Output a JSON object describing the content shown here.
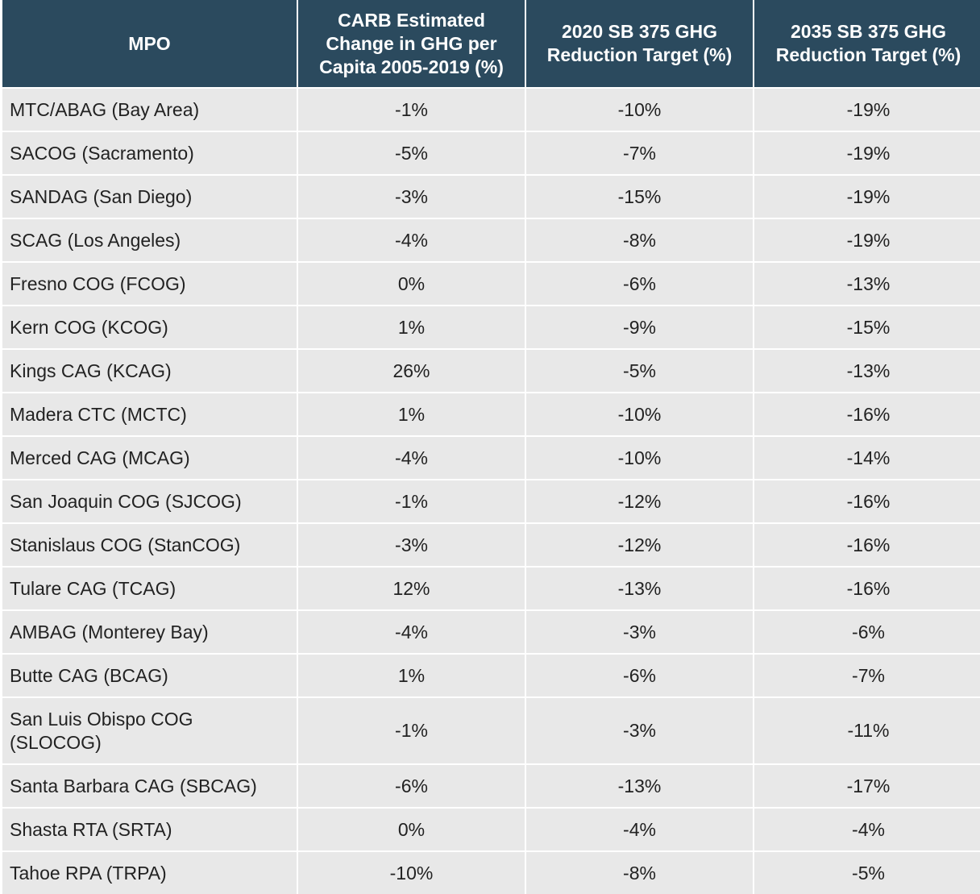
{
  "table": {
    "headers": [
      "MPO",
      "CARB Estimated\nChange in GHG per\nCapita 2005-2019 (%)",
      "2020 SB 375 GHG\nReduction Target (%)",
      "2035 SB 375 GHG\nReduction Target (%)"
    ],
    "rows": [
      {
        "mpo": "MTC/ABAG (Bay Area)",
        "carb": "-1%",
        "t2020": "-10%",
        "t2035": "-19%"
      },
      {
        "mpo": "SACOG (Sacramento)",
        "carb": "-5%",
        "t2020": "-7%",
        "t2035": "-19%"
      },
      {
        "mpo": "SANDAG (San Diego)",
        "carb": "-3%",
        "t2020": "-15%",
        "t2035": "-19%"
      },
      {
        "mpo": "SCAG (Los Angeles)",
        "carb": "-4%",
        "t2020": "-8%",
        "t2035": "-19%"
      },
      {
        "mpo": "Fresno COG (FCOG)",
        "carb": "0%",
        "t2020": "-6%",
        "t2035": "-13%"
      },
      {
        "mpo": "Kern COG (KCOG)",
        "carb": "1%",
        "t2020": "-9%",
        "t2035": "-15%"
      },
      {
        "mpo": "Kings CAG (KCAG)",
        "carb": "26%",
        "t2020": "-5%",
        "t2035": "-13%"
      },
      {
        "mpo": "Madera CTC (MCTC)",
        "carb": "1%",
        "t2020": "-10%",
        "t2035": "-16%"
      },
      {
        "mpo": "Merced CAG (MCAG)",
        "carb": "-4%",
        "t2020": "-10%",
        "t2035": "-14%"
      },
      {
        "mpo": "San Joaquin COG (SJCOG)",
        "carb": "-1%",
        "t2020": "-12%",
        "t2035": "-16%"
      },
      {
        "mpo": "Stanislaus COG (StanCOG)",
        "carb": "-3%",
        "t2020": "-12%",
        "t2035": "-16%"
      },
      {
        "mpo": "Tulare CAG (TCAG)",
        "carb": "12%",
        "t2020": "-13%",
        "t2035": "-16%"
      },
      {
        "mpo": "AMBAG (Monterey Bay)",
        "carb": "-4%",
        "t2020": "-3%",
        "t2035": "-6%"
      },
      {
        "mpo": "Butte CAG (BCAG)",
        "carb": "1%",
        "t2020": "-6%",
        "t2035": "-7%"
      },
      {
        "mpo": "San Luis Obispo COG\n(SLOCOG)",
        "carb": "-1%",
        "t2020": "-3%",
        "t2035": "-11%",
        "tall": true
      },
      {
        "mpo": "Santa Barbara CAG (SBCAG)",
        "carb": "-6%",
        "t2020": "-13%",
        "t2035": "-17%"
      },
      {
        "mpo": "Shasta RTA (SRTA)",
        "carb": "0%",
        "t2020": "-4%",
        "t2035": "-4%"
      },
      {
        "mpo": "Tahoe RPA (TRPA)",
        "carb": "-10%",
        "t2020": "-8%",
        "t2035": "-5%"
      }
    ]
  }
}
